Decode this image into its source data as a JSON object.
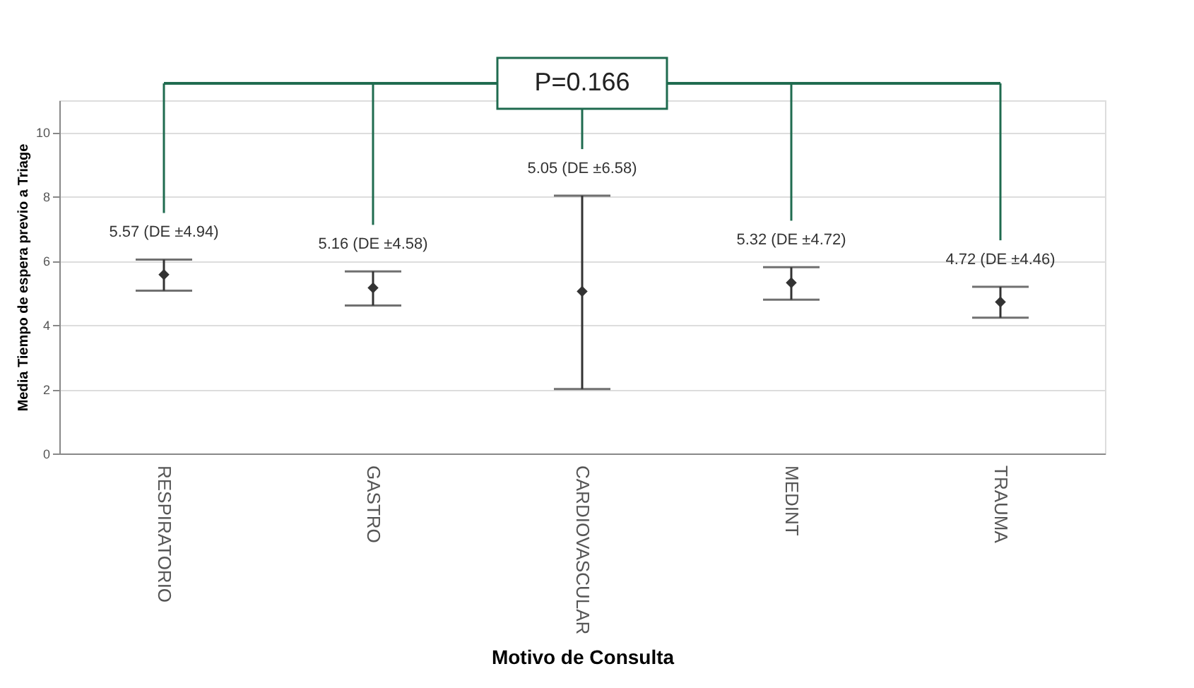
{
  "chart_data": {
    "type": "scatter",
    "xlabel": "Motivo de Consulta",
    "ylabel": "Media Tiempo de espera previo a Triage",
    "categories": [
      "RESPIRATORIO",
      "GASTRO",
      "CARDIOVASCULAR",
      "MEDINT",
      "TRAUMA"
    ],
    "values": [
      5.57,
      5.16,
      5.05,
      5.32,
      4.72
    ],
    "errors": [
      [
        5.07,
        6.04
      ],
      [
        4.61,
        5.67
      ],
      [
        2.01,
        8.03
      ],
      [
        4.79,
        5.8
      ],
      [
        4.23,
        5.19
      ]
    ],
    "color": "#333333",
    "marker": "diamond",
    "grid": "y",
    "legend": false,
    "ylim": [
      0,
      11
    ],
    "yticks": [
      0,
      2,
      4,
      6,
      8,
      10
    ],
    "annotations": [
      "5.57 (DE ±4.94)",
      "5.16 (DE ±4.58)",
      "5.05 (DE ±6.58)",
      "5.32 (DE ±4.72)",
      "4.72 (DE ±4.46)",
      "P=0.166"
    ]
  }
}
